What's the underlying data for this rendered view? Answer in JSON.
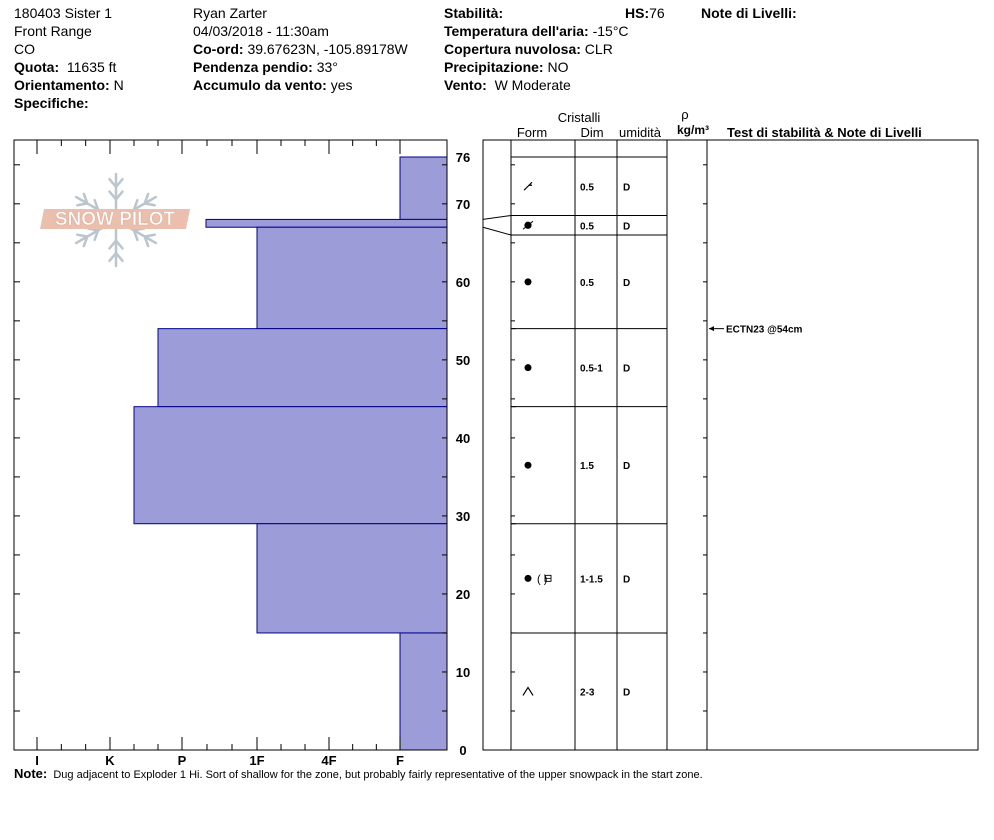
{
  "header": {
    "site": "180403 Sister 1",
    "range": "Front Range",
    "state": "CO",
    "elevation_label": "Quota:",
    "elevation_value": "11635 ft",
    "aspect_label": "Orientamento:",
    "aspect_value": "N",
    "specifics_label": "Specifiche:",
    "observer": "Ryan Zarter",
    "datetime": "04/03/2018 - 11:30am",
    "coords_label": "Co-ord:",
    "coords_value": "39.67623N, -105.89178W",
    "slope_label": "Pendenza pendio:",
    "slope_value": "33°",
    "wind_loading_label": "Accumulo da vento:",
    "wind_loading_value": "yes",
    "stability_label": "Stabilità:",
    "hs_label": "HS:",
    "hs_value": "76",
    "air_temp_label": "Temperatura dell'aria:",
    "air_temp_value": "-15°C",
    "sky_label": "Copertura nuvolosa:",
    "sky_value": "CLR",
    "precip_label": "Precipitazione:",
    "precip_value": "NO",
    "wind_label": "Vento:",
    "wind_value": "W Moderate",
    "layer_notes_label": "Note di Livelli:"
  },
  "logo_text": "SNOW PILOT",
  "columns": {
    "crystals": "Cristalli",
    "form": "Form",
    "size": "Dim",
    "moisture": "umidità",
    "rho": "ρ",
    "density_unit": "kg/m³",
    "tests": "Test di stabilità & Note di Livelli"
  },
  "colors": {
    "hardness_fill": "#9c9cd8",
    "hardness_stroke": "#00008b",
    "logo": "#e8b9a6",
    "snowflake": "#b4bfc9"
  },
  "note": {
    "label": "Note:",
    "text": "Dug adjacent to Exploder 1 Hi.  Sort of shallow for the zone, but probably fairly representative of the upper snowpack in the start zone."
  },
  "chart_data": {
    "type": "bar",
    "orientation": "horizontal",
    "x_categories": [
      "I",
      "K",
      "P",
      "1F",
      "4F",
      "F"
    ],
    "xlabel": "",
    "ylabel": "",
    "ylim": [
      0,
      76
    ],
    "y_ticks": [
      "0",
      "10",
      "20",
      "30",
      "40",
      "50",
      "60",
      "70",
      "76"
    ],
    "hardness_layers": [
      {
        "top": 76,
        "bottom": 68,
        "hardness": "F"
      },
      {
        "top": 68,
        "bottom": 67,
        "hardness": "P+"
      },
      {
        "top": 67,
        "bottom": 54,
        "hardness": "1F"
      },
      {
        "top": 54,
        "bottom": 44,
        "hardness": "P-"
      },
      {
        "top": 44,
        "bottom": 29,
        "hardness": "K+"
      },
      {
        "top": 29,
        "bottom": 15,
        "hardness": "1F"
      },
      {
        "top": 15,
        "bottom": 0,
        "hardness": "F"
      }
    ],
    "crystal_layers": [
      {
        "top": 76,
        "bottom": 68.5,
        "form": "DF",
        "size": "0.5",
        "moisture": "D"
      },
      {
        "top": 68.5,
        "bottom": 66,
        "form": "MF",
        "size": "0.5",
        "moisture": "D"
      },
      {
        "top": 66,
        "bottom": 54,
        "form": "RG",
        "size": "0.5",
        "moisture": "D"
      },
      {
        "top": 54,
        "bottom": 44,
        "form": "RG",
        "size": "0.5-1",
        "moisture": "D"
      },
      {
        "top": 44,
        "bottom": 29,
        "form": "RG",
        "size": "1.5",
        "moisture": "D"
      },
      {
        "top": 29,
        "bottom": 15,
        "form": "RG (FC)",
        "size": "1-1.5",
        "moisture": "D"
      },
      {
        "top": 15,
        "bottom": 0,
        "form": "DH",
        "size": "2-3",
        "moisture": "D"
      }
    ],
    "stability_tests": [
      {
        "depth": 54,
        "result": "ECTN23 @54cm"
      }
    ]
  }
}
